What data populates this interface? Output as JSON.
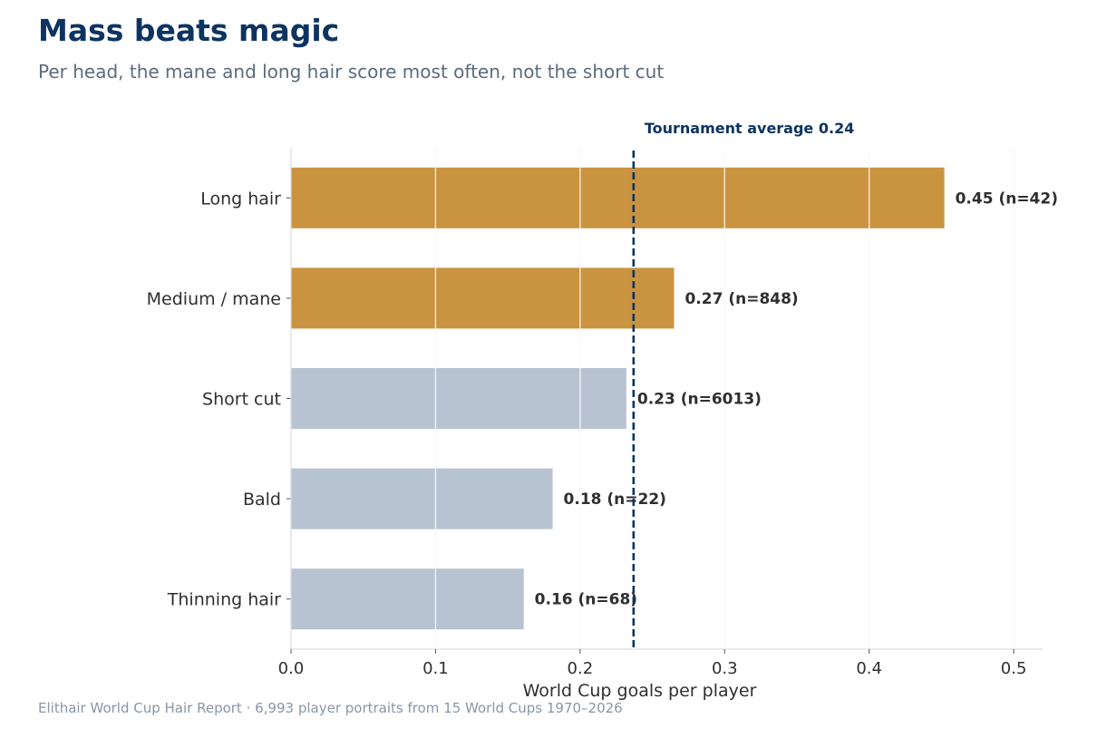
{
  "chart_data": {
    "type": "bar",
    "orientation": "horizontal",
    "title": "Mass beats magic",
    "subtitle": "Per head, the mane and long hair score most often, not the short cut",
    "categories": [
      "Long hair",
      "Medium / mane",
      "Short cut",
      "Bald",
      "Thinning hair"
    ],
    "values": [
      0.452,
      0.265,
      0.232,
      0.181,
      0.161
    ],
    "value_labels": [
      "0.45  (n=42)",
      "0.27  (n=848)",
      "0.23  (n=6013)",
      "0.18  (n=22)",
      "0.16  (n=68)"
    ],
    "highlighted": [
      true,
      true,
      false,
      false,
      false
    ],
    "xlabel": "World Cup goals per player",
    "ylabel": "",
    "xlim": [
      0,
      0.52
    ],
    "xticks": [
      0.0,
      0.1,
      0.2,
      0.3,
      0.4,
      0.5
    ],
    "xtick_labels": [
      "0.0",
      "0.1",
      "0.2",
      "0.3",
      "0.4",
      "0.5"
    ],
    "reference_line": {
      "value": 0.237,
      "label": "Tournament average 0.24"
    },
    "grid": "vertical",
    "colors": {
      "highlight": "#c9933f",
      "default": "#b7c3d0",
      "reference": "#0d3461"
    },
    "footer": "Elithair World Cup Hair Report  ·  6,993 player portraits from 15 World Cups 1970–2026"
  }
}
